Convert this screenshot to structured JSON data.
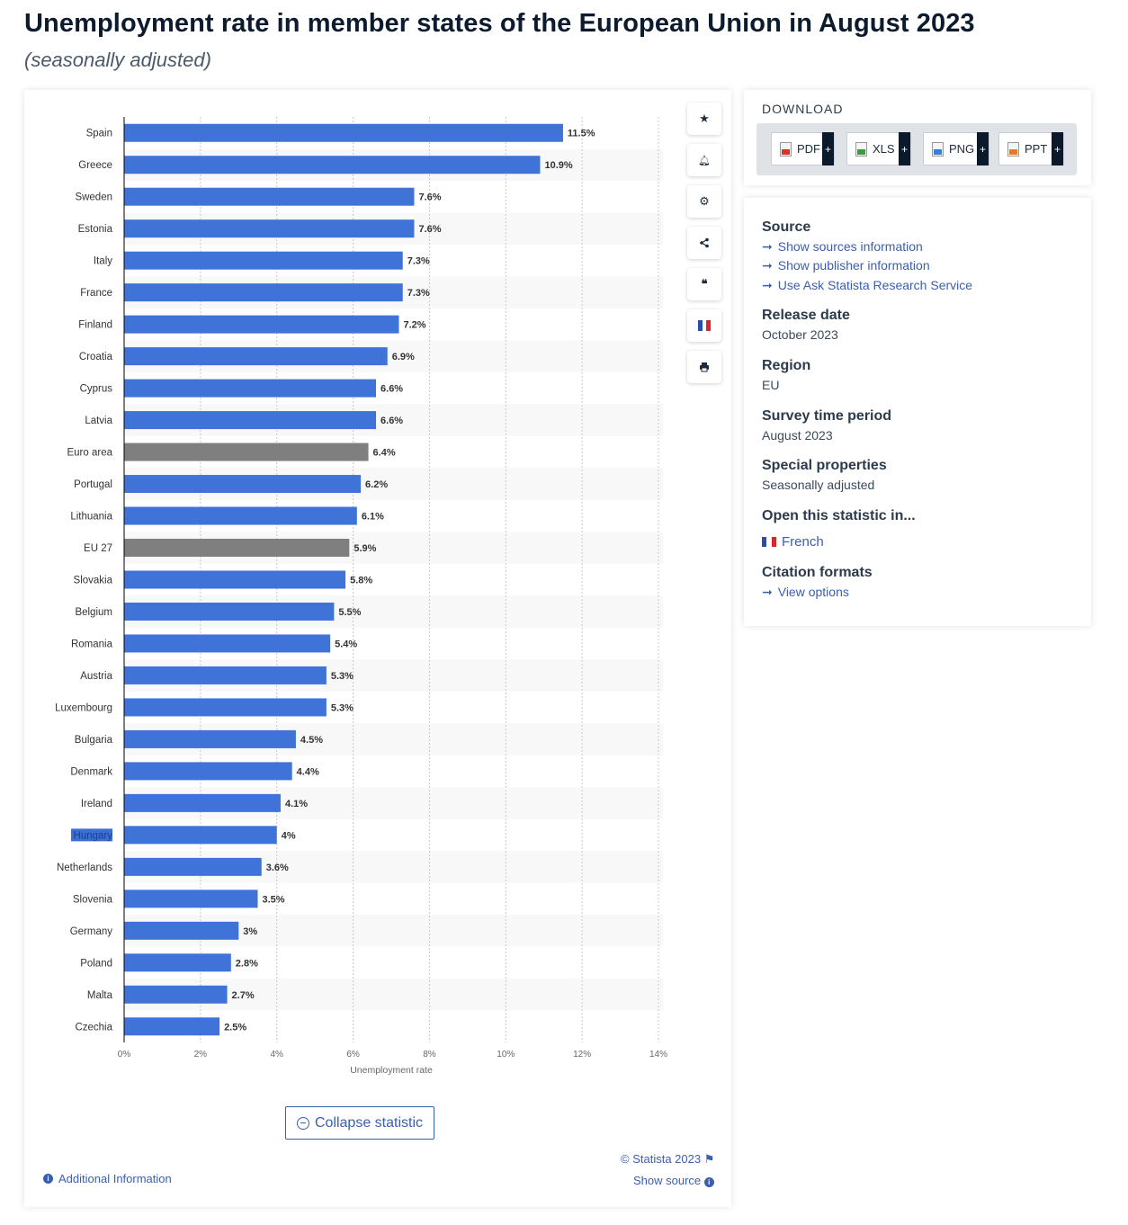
{
  "page": {
    "title": "Unemployment rate in member states of the European Union in August 2023",
    "subtitle": "(seasonally adjusted)"
  },
  "colors": {
    "bar_country": "#4073d8",
    "bar_aggregate": "#7f7f7f",
    "link": "#3b5fb0"
  },
  "chart_data": {
    "type": "bar",
    "orientation": "horizontal",
    "categories": [
      "Spain",
      "Greece",
      "Sweden",
      "Estonia",
      "Italy",
      "France",
      "Finland",
      "Croatia",
      "Cyprus",
      "Latvia",
      "Euro area",
      "Portugal",
      "Lithuania",
      "EU 27",
      "Slovakia",
      "Belgium",
      "Romania",
      "Austria",
      "Luxembourg",
      "Bulgaria",
      "Denmark",
      "Ireland",
      "Hungary",
      "Netherlands",
      "Slovenia",
      "Germany",
      "Poland",
      "Malta",
      "Czechia"
    ],
    "values": [
      11.5,
      10.9,
      7.6,
      7.6,
      7.3,
      7.3,
      7.2,
      6.9,
      6.6,
      6.6,
      6.4,
      6.2,
      6.1,
      5.9,
      5.8,
      5.5,
      5.4,
      5.3,
      5.3,
      4.5,
      4.4,
      4.1,
      4,
      3.6,
      3.5,
      3,
      2.8,
      2.7,
      2.5
    ],
    "data_labels": [
      "11.5%",
      "10.9%",
      "7.6%",
      "7.6%",
      "7.3%",
      "7.3%",
      "7.2%",
      "6.9%",
      "6.6%",
      "6.6%",
      "6.4%",
      "6.2%",
      "6.1%",
      "5.9%",
      "5.8%",
      "5.5%",
      "5.4%",
      "5.3%",
      "5.3%",
      "4.5%",
      "4.4%",
      "4.1%",
      "4%",
      "3.6%",
      "3.5%",
      "3%",
      "2.8%",
      "2.7%",
      "2.5%"
    ],
    "aggregates": [
      "Euro area",
      "EU 27"
    ],
    "highlighted_category": "Hungary",
    "xlabel": "Unemployment rate",
    "xlim": [
      0,
      14
    ],
    "xticks": [
      0,
      2,
      4,
      6,
      8,
      10,
      12,
      14
    ],
    "xtick_labels": [
      "0%",
      "2%",
      "4%",
      "6%",
      "8%",
      "10%",
      "12%",
      "14%"
    ],
    "grid": true
  },
  "tools": {
    "items": [
      {
        "name": "star-icon",
        "glyph": "★"
      },
      {
        "name": "bell-icon",
        "glyph": "🔔"
      },
      {
        "name": "gear-icon",
        "glyph": "⚙"
      },
      {
        "name": "share-icon",
        "glyph": "⋖"
      },
      {
        "name": "quote-icon",
        "glyph": "❝"
      },
      {
        "name": "french-flag-icon",
        "glyph": ""
      },
      {
        "name": "print-icon",
        "glyph": "⎙"
      }
    ]
  },
  "chart_footer": {
    "collapse_label": "Collapse statistic",
    "copyright": "© Statista 2023",
    "show_source": "Show source",
    "additional_info": "Additional Information"
  },
  "download": {
    "title": "DOWNLOAD",
    "buttons": [
      {
        "label": "PDF",
        "icon": "pdf-file-icon",
        "color": "#d9322b"
      },
      {
        "label": "XLS",
        "icon": "xls-file-icon",
        "color": "#3f9b43"
      },
      {
        "label": "PNG",
        "icon": "png-file-icon",
        "color": "#3b7fd0"
      },
      {
        "label": "PPT",
        "icon": "ppt-file-icon",
        "color": "#e07b2a"
      }
    ],
    "plus": "+"
  },
  "meta": {
    "source_h": "Source",
    "source_links": [
      "Show sources information",
      "Show publisher information",
      "Use Ask Statista Research Service"
    ],
    "release_h": "Release date",
    "release_v": "October 2023",
    "region_h": "Region",
    "region_v": "EU",
    "period_h": "Survey time period",
    "period_v": "August 2023",
    "special_h": "Special properties",
    "special_v": "Seasonally adjusted",
    "open_h": "Open this statistic in...",
    "open_v": "French",
    "citation_h": "Citation formats",
    "citation_v": "View options"
  }
}
